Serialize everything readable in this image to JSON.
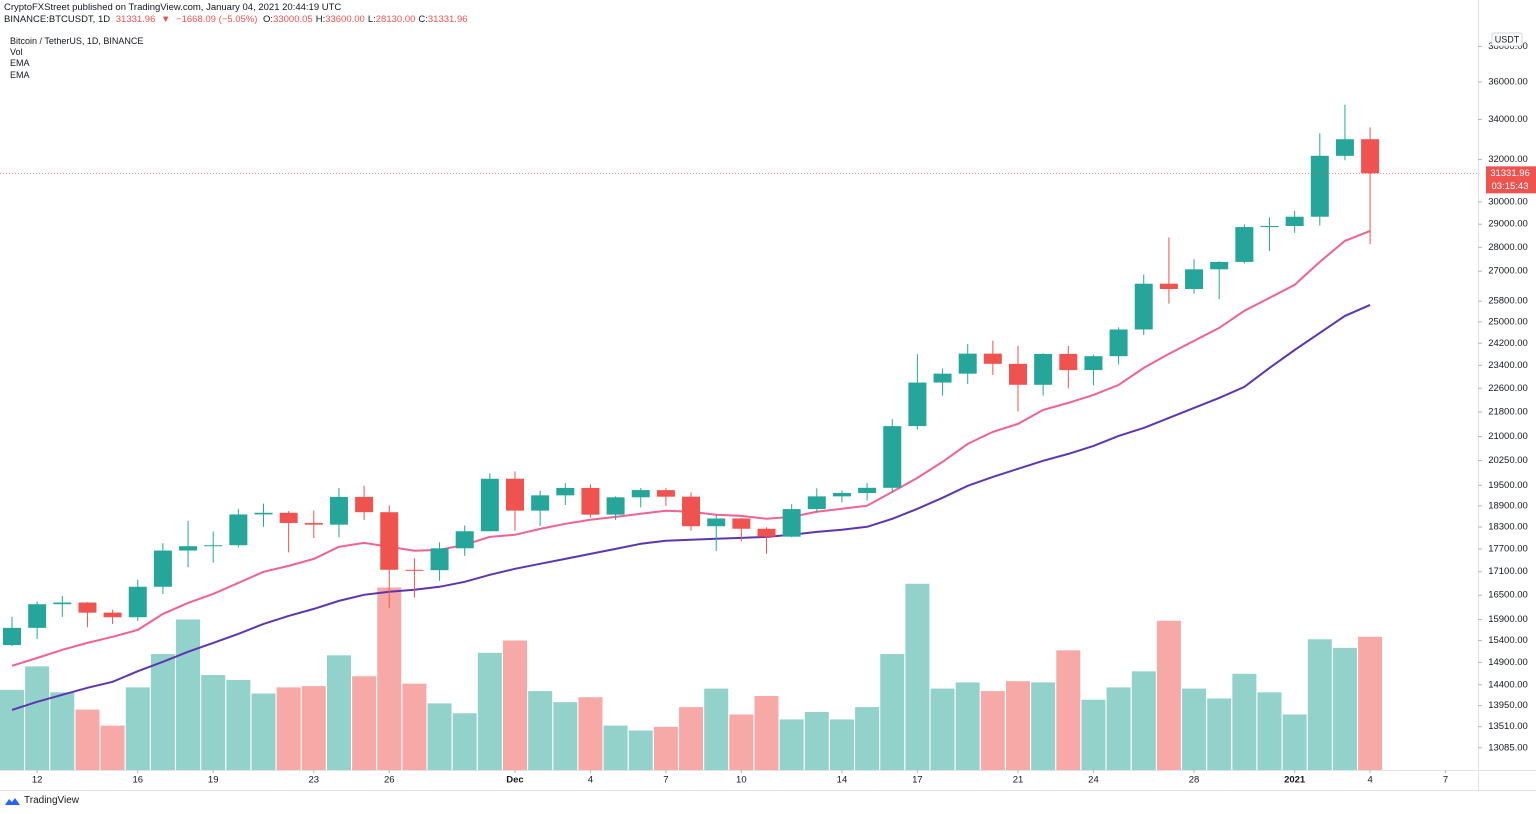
{
  "header": {
    "publisher": "CryptoFXStreet published on TradingView.com, January 04, 2021 20:44:19 UTC",
    "symbol": "BINANCE:BTCUSDT, 1D",
    "last": "31331.96",
    "arrow": "▼",
    "change": "−1668.09 (−5.05%)",
    "ohlc": [
      {
        "key": "O:",
        "value": "33000.05"
      },
      {
        "key": "H:",
        "value": "33600.00"
      },
      {
        "key": "L:",
        "value": "28130.00"
      },
      {
        "key": "C:",
        "value": "31331.96"
      }
    ]
  },
  "chart_data": {
    "type": "candlestick",
    "title": "Bitcoin / TetherUS, 1D, BINANCE",
    "indicators": [
      "Vol",
      "EMA",
      "EMA"
    ],
    "currency": "USDT",
    "log_scale": true,
    "grid": false,
    "up_color": "#26a69a",
    "down_color": "#ef5350",
    "up_volume_color": "#92d2cb",
    "down_volume_color": "#f7a9a7",
    "categories": [
      null,
      "12",
      null,
      null,
      null,
      "16",
      null,
      null,
      "19",
      null,
      null,
      null,
      "23",
      null,
      null,
      "26",
      null,
      null,
      null,
      null,
      "Dec",
      null,
      null,
      "4",
      null,
      null,
      "7",
      null,
      null,
      "10",
      null,
      null,
      null,
      "14",
      null,
      null,
      "17",
      null,
      null,
      null,
      "21",
      null,
      null,
      "24",
      null,
      null,
      null,
      "28",
      null,
      null,
      null,
      "2021",
      null,
      null,
      "4",
      null,
      null,
      "7"
    ],
    "open": [
      15296,
      15701,
      16276,
      16317,
      16069,
      15957,
      16713,
      17659,
      17777,
      17803,
      18656,
      18703,
      18415,
      18368,
      19160,
      18719,
      17149,
      17139,
      17720,
      18185,
      19696,
      18764,
      19205,
      19422,
      18650,
      19148,
      19358,
      19166,
      18324,
      18542,
      18254,
      18036,
      18809,
      19175,
      19273,
      19426,
      21336,
      22797,
      23107,
      23821,
      23455,
      22719,
      23811,
      23233,
      23729,
      24713,
      26493,
      26281,
      27079,
      27385,
      28876,
      28923,
      29332,
      32176,
      33000.05,
      null,
      null,
      null
    ],
    "high": [
      15965,
      16340,
      16480,
      16326,
      16139,
      16894,
      17858,
      18476,
      18179,
      18815,
      18965,
      18750,
      18770,
      19418,
      19484,
      18915,
      17457,
      17880,
      18344,
      19863,
      19918,
      19342,
      19566,
      19527,
      19177,
      19420,
      19420,
      19294,
      18639,
      18557,
      18292,
      18948,
      19411,
      19349,
      19570,
      21560,
      23800,
      23285,
      24171,
      24295,
      24102,
      23837,
      24100,
      23789,
      24789,
      26867,
      28422,
      27500,
      27410,
      28996,
      29300,
      29600,
      33300,
      34778,
      33600,
      null,
      null,
      null
    ],
    "low": [
      15272,
      15440,
      15965,
      15715,
      15793,
      15867,
      16531,
      17214,
      17335,
      17740,
      18308,
      17610,
      18000,
      18018,
      18500,
      16188,
      16438,
      16865,
      17517,
      18185,
      18200,
      18330,
      18925,
      18565,
      18500,
      18857,
      18902,
      18200,
      17650,
      17911,
      17572,
      18020,
      18711,
      19000,
      19050,
      19278,
      21230,
      22350,
      22750,
      23060,
      21815,
      22353,
      22600,
      22703,
      23433,
      24500,
      25700,
      26101,
      25880,
      27320,
      27850,
      28624,
      28946,
      31962,
      28130,
      null,
      null,
      null
    ],
    "close": [
      15701,
      16276,
      16317,
      16068,
      15957,
      16713,
      17659,
      17776,
      17802,
      18655,
      18703,
      18415,
      18368,
      19160,
      18720,
      17150,
      17139,
      17719,
      18185,
      19695,
      18764,
      19205,
      19421,
      18650,
      19148,
      19359,
      19166,
      18324,
      18541,
      18254,
      18036,
      18808,
      19175,
      19273,
      19426,
      21335,
      22797,
      23107,
      23821,
      23455,
      22719,
      23811,
      23233,
      23729,
      24712,
      26493,
      26281,
      27079,
      27385,
      28875,
      28923,
      29332,
      32178,
      33000.05,
      31331.96,
      null,
      null,
      null
    ],
    "volume": [
      65,
      84,
      63,
      49,
      36,
      67,
      94,
      122,
      77,
      73,
      62,
      67,
      68,
      93,
      76,
      148,
      70,
      54,
      46,
      95,
      105,
      64,
      55,
      59,
      36,
      32,
      35,
      51,
      66,
      45,
      60,
      41,
      47,
      41,
      51,
      94,
      151,
      66,
      71,
      64,
      72,
      71,
      97,
      57,
      67,
      80,
      121,
      66,
      58,
      78,
      63,
      45,
      106,
      99,
      108,
      null,
      null,
      null
    ],
    "vlim": [
      0,
      600
    ],
    "ema": [
      {
        "color": "#f06292",
        "values": [
          14820,
          14999,
          15185,
          15347,
          15488,
          15653,
          16038,
          16309,
          16533,
          16812,
          17097,
          17253,
          17437,
          17759,
          17866,
          17759,
          17651,
          17677,
          17813,
          18030,
          18086,
          18251,
          18391,
          18503,
          18587,
          18673,
          18759,
          18730,
          18644,
          18615,
          18531,
          18587,
          18730,
          18816,
          18904,
          19306,
          19722,
          20207,
          20768,
          21149,
          21409,
          21870,
          22103,
          22374,
          22717,
          23311,
          23813,
          24287,
          24773,
          25421,
          25929,
          26446,
          27387,
          28275,
          28708,
          null,
          null,
          null
        ]
      },
      {
        "color": "#5e35b1",
        "values": [
          13861,
          14031,
          14181,
          14333,
          14464,
          14700,
          14911,
          15139,
          15347,
          15558,
          15797,
          15990,
          16161,
          16359,
          16509,
          16585,
          16635,
          16712,
          16839,
          17019,
          17175,
          17306,
          17437,
          17570,
          17704,
          17840,
          17922,
          17949,
          17976,
          18003,
          18030,
          18086,
          18167,
          18224,
          18307,
          18531,
          18815,
          19132,
          19485,
          19752,
          19997,
          20239,
          20455,
          20703,
          21020,
          21278,
          21604,
          21935,
          22271,
          22646,
          23311,
          23955,
          24585,
          25227,
          25652,
          null,
          null,
          null
        ]
      }
    ],
    "ylim": [
      12650,
      38960
    ],
    "yticks": [
      {
        "value": 38000,
        "label": "38000.00"
      },
      {
        "value": 36000,
        "label": "36000.00"
      },
      {
        "value": 34000,
        "label": "34000.00"
      },
      {
        "value": 32000,
        "label": "32000.00"
      },
      {
        "value": 30000,
        "label": "30000.00"
      },
      {
        "value": 29000,
        "label": "29000.00"
      },
      {
        "value": 28000,
        "label": "28000.00"
      },
      {
        "value": 27000,
        "label": "27000.00"
      },
      {
        "value": 25800,
        "label": "25800.00"
      },
      {
        "value": 25000,
        "label": "25000.00"
      },
      {
        "value": 24200,
        "label": "24200.00"
      },
      {
        "value": 23400,
        "label": "23400.00"
      },
      {
        "value": 22600,
        "label": "22600.00"
      },
      {
        "value": 21800,
        "label": "21800.00"
      },
      {
        "value": 21000,
        "label": "21000.00"
      },
      {
        "value": 20250,
        "label": "20250.00"
      },
      {
        "value": 19500,
        "label": "19500.00"
      },
      {
        "value": 18900,
        "label": "18900.00"
      },
      {
        "value": 18300,
        "label": "18300.00"
      },
      {
        "value": 17700,
        "label": "17700.00"
      },
      {
        "value": 17100,
        "label": "17100.00"
      },
      {
        "value": 16500,
        "label": "16500.00"
      },
      {
        "value": 15900,
        "label": "15900.00"
      },
      {
        "value": 15400,
        "label": "15400.00"
      },
      {
        "value": 14900,
        "label": "14900.00"
      },
      {
        "value": 14400,
        "label": "14400.00"
      },
      {
        "value": 13950,
        "label": "13950.00"
      },
      {
        "value": 13510,
        "label": "13510.00"
      },
      {
        "value": 13085,
        "label": "13085.00"
      }
    ],
    "last_price": {
      "value": 31331.96,
      "label": "31331.96"
    },
    "countdown": "03:15:43"
  },
  "branding": "TradingView"
}
